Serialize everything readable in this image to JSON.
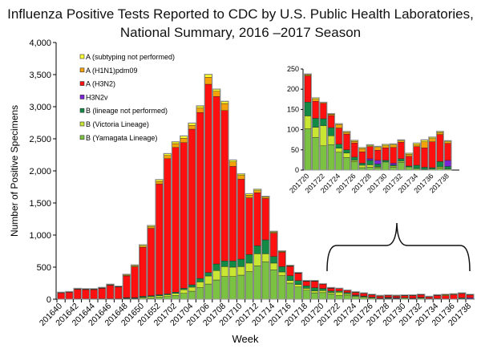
{
  "chart_data": {
    "type": "bar",
    "stacked": true,
    "title_line1": "Influenza Positive Tests Reported to CDC by U.S. Public Health Laboratories,",
    "title_line2": "National Summary, 2016 –2017 Season",
    "xlabel": "Week",
    "ylabel": "Number of Positive Specimens",
    "ylim": [
      0,
      4000
    ],
    "yticks": [
      "0",
      "500",
      "1,000",
      "1,500",
      "2,000",
      "2,500",
      "3,000",
      "3,500",
      "4,000"
    ],
    "legend_position": "top-left",
    "categories": [
      "201640",
      "201641",
      "201642",
      "201643",
      "201644",
      "201645",
      "201646",
      "201647",
      "201648",
      "201649",
      "201650",
      "201651",
      "201652",
      "201701",
      "201702",
      "201703",
      "201704",
      "201705",
      "201706",
      "201707",
      "201708",
      "201709",
      "201710",
      "201711",
      "201712",
      "201713",
      "201714",
      "201715",
      "201716",
      "201717",
      "201718",
      "201719",
      "201720",
      "201721",
      "201722",
      "201723",
      "201724",
      "201725",
      "201726",
      "201727",
      "201728",
      "201729",
      "201730",
      "201731",
      "201732",
      "201733",
      "201734",
      "201735",
      "201736",
      "201737",
      "201738"
    ],
    "xtick_labels": [
      "201640",
      "201642",
      "201644",
      "201646",
      "201648",
      "201650",
      "201652",
      "201702",
      "201704",
      "201706",
      "201708",
      "201710",
      "201712",
      "201714",
      "201716",
      "201718",
      "201720",
      "201722",
      "201724",
      "201726",
      "201728",
      "201730",
      "201732",
      "201734",
      "201736",
      "201738"
    ],
    "series": [
      {
        "name": "B (Yamagata Lineage)",
        "color": "#7cc242",
        "values": [
          3,
          3,
          4,
          4,
          4,
          5,
          5,
          5,
          10,
          10,
          15,
          20,
          30,
          40,
          60,
          90,
          125,
          180,
          237,
          300,
          354,
          354,
          375,
          430,
          520,
          583,
          458,
          367,
          250,
          190,
          140,
          100,
          102,
          81,
          60,
          63,
          44,
          31,
          21,
          6,
          7,
          6,
          20,
          7,
          19,
          8,
          4,
          2,
          3,
          5,
          3
        ]
      },
      {
        "name": "B (Victoria Lineage)",
        "color": "#c8e632",
        "values": [
          0,
          0,
          0,
          0,
          0,
          0,
          0,
          0,
          5,
          5,
          15,
          20,
          25,
          30,
          30,
          60,
          63,
          90,
          125,
          146,
          154,
          146,
          133,
          133,
          188,
          125,
          105,
          58,
          42,
          40,
          30,
          30,
          32,
          25,
          50,
          22,
          10,
          11,
          3,
          6,
          6,
          2,
          0,
          3,
          3,
          0,
          0,
          0,
          0,
          3,
          0
        ]
      },
      {
        "name": "B (lineage not performed)",
        "color": "#128a45",
        "values": [
          2,
          2,
          3,
          3,
          3,
          3,
          3,
          3,
          10,
          10,
          15,
          15,
          15,
          15,
          20,
          20,
          37,
          55,
          55,
          104,
          88,
          96,
          117,
          133,
          125,
          217,
          104,
          83,
          75,
          60,
          40,
          50,
          34,
          22,
          17,
          20,
          10,
          8,
          8,
          5,
          11,
          7,
          4,
          3,
          6,
          2,
          8,
          5,
          3,
          13,
          6
        ]
      },
      {
        "name": "H3N2v",
        "color": "#7a22d6",
        "values": [
          0,
          0,
          0,
          0,
          0,
          0,
          0,
          0,
          0,
          0,
          0,
          0,
          0,
          0,
          0,
          0,
          0,
          0,
          0,
          0,
          0,
          0,
          0,
          0,
          0,
          0,
          0,
          0,
          0,
          0,
          0,
          0,
          0,
          0,
          0,
          0,
          0,
          0,
          0,
          0,
          4,
          9,
          0,
          4,
          0,
          0,
          0,
          0,
          0,
          0,
          15
        ]
      },
      {
        "name": "A (H3N2)",
        "color": "#ff1010",
        "values": [
          94,
          103,
          148,
          143,
          143,
          162,
          210,
          182,
          338,
          480,
          765,
          1050,
          1725,
          2105,
          2255,
          2270,
          2425,
          2585,
          2933,
          2610,
          2344,
          1474,
          1245,
          884,
          827,
          645,
          363,
          224,
          145,
          112,
          68,
          98,
          65,
          42,
          38,
          30,
          40,
          39,
          35,
          28,
          30,
          25,
          31,
          39,
          41,
          24,
          46,
          48,
          64,
          67,
          42
        ]
      },
      {
        "name": "A (H1N1)pdm09",
        "color": "#f5a20a",
        "values": [
          3,
          3,
          5,
          5,
          5,
          5,
          6,
          5,
          12,
          15,
          20,
          25,
          40,
          50,
          60,
          70,
          60,
          70,
          110,
          80,
          110,
          70,
          60,
          40,
          30,
          20,
          15,
          10,
          8,
          6,
          5,
          5,
          3,
          5,
          2,
          3,
          8,
          4,
          4,
          8,
          2,
          7,
          5,
          6,
          3,
          5,
          5,
          15,
          8,
          5,
          4
        ]
      },
      {
        "name": "A (subtyping not performed)",
        "color": "#ffff30",
        "values": [
          3,
          4,
          5,
          5,
          5,
          5,
          6,
          5,
          10,
          10,
          15,
          15,
          25,
          25,
          25,
          30,
          30,
          30,
          40,
          30,
          30,
          25,
          20,
          20,
          20,
          10,
          10,
          8,
          5,
          5,
          5,
          5,
          1,
          3,
          0,
          1,
          2,
          2,
          2,
          2,
          2,
          2,
          3,
          2,
          2,
          2,
          3,
          4,
          3,
          2,
          2
        ]
      }
    ],
    "legend_order": [
      "A (subtyping not performed)",
      "A (H1N1)pdm09",
      "A (H3N2)",
      "H3N2v",
      "B (lineage not performed)",
      "B (Victoria Lineage)",
      "B (Yamagata Lineage)"
    ],
    "inset": {
      "categories_from": "201720",
      "categories_to": "201738",
      "ylim": [
        0,
        250
      ],
      "yticks": [
        "0",
        "50",
        "100",
        "150",
        "200",
        "250"
      ],
      "xtick_labels": [
        "201720",
        "201722",
        "201724",
        "201726",
        "201728",
        "201730",
        "201732",
        "201734",
        "201736",
        "201738"
      ]
    }
  }
}
